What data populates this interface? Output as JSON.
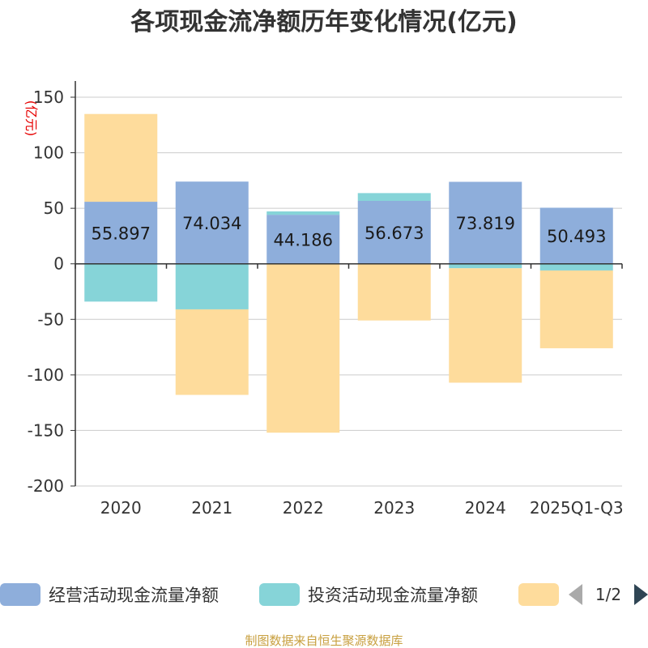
{
  "colors": {
    "operating": "#8eaedb",
    "investing": "#86d4d8",
    "financing": "#fedc9c",
    "axis": "#333333",
    "grid": "#cccccc",
    "unit": "#e60000",
    "source": "#c8a040",
    "pager_prev": "#aaaaaa",
    "pager_next": "#2f4554"
  },
  "legend": {
    "items": [
      {
        "name": "经营活动现金流量净额",
        "color_key": "operating"
      },
      {
        "name": "投资活动现金流量净额",
        "color_key": "investing"
      },
      {
        "name": "",
        "color_key": "financing"
      }
    ],
    "page": "1/2",
    "prev_icon": "triangle-left-icon",
    "next_icon": "triangle-right-icon"
  },
  "source_note": "制图数据来自恒生聚源数据库",
  "chart_data": {
    "type": "bar",
    "stacked": true,
    "title": "各项现金流净额历年变化情况(亿元)",
    "ylabel": "(亿元)",
    "ylim": [
      -200,
      150
    ],
    "yticks": [
      150,
      100,
      50,
      0,
      -50,
      -100,
      -150,
      -200
    ],
    "ytick_labels": [
      "150",
      "100",
      "50",
      "0",
      "-50",
      "-100",
      "-150",
      "-200"
    ],
    "categories": [
      "2020",
      "2021",
      "2022",
      "2023",
      "2024",
      "2025Q1-Q3"
    ],
    "series": [
      {
        "name": "经营活动现金流量净额",
        "key": "operating",
        "values": [
          55.897,
          74.034,
          44.186,
          56.673,
          73.819,
          50.493
        ],
        "labels": [
          "55.897",
          "74.034",
          "44.186",
          "56.673",
          "73.819",
          "50.493"
        ]
      },
      {
        "name": "投资活动现金流量净额",
        "key": "investing",
        "values": [
          -34,
          -41,
          3,
          7,
          -4,
          -6
        ],
        "labels": []
      },
      {
        "name": "",
        "key": "financing",
        "values": [
          79,
          -77,
          -152,
          -51,
          -103,
          -70
        ],
        "labels": []
      }
    ]
  }
}
